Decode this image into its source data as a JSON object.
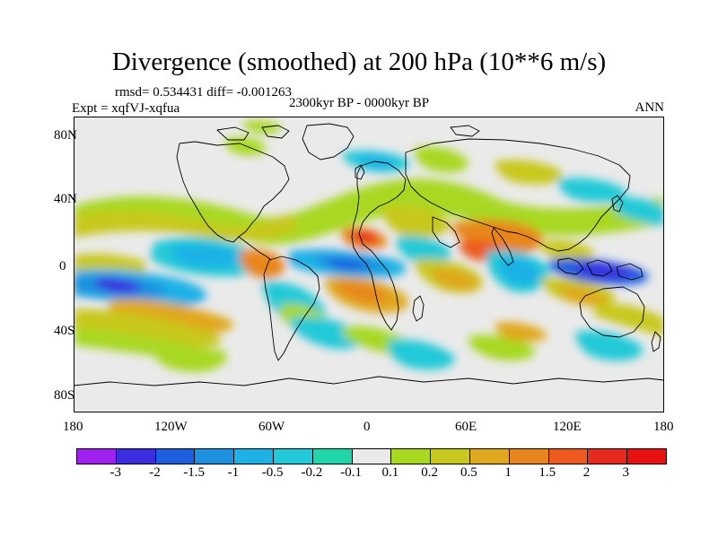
{
  "title": "Divergence (smoothed) at 200 hPa (10**6 m/s)",
  "stats": "rmsd= 0.534431 diff= -0.001263",
  "experiment": "Expt = xqfVJ-xqfua",
  "period": "2300kyr BP - 0000kyr BP",
  "season": "ANN",
  "lat_labels": [
    "80N",
    "40N",
    "0",
    "40S",
    "80S"
  ],
  "lon_labels": [
    "180",
    "120W",
    "60W",
    "0",
    "60E",
    "120E",
    "180"
  ],
  "colorbar": {
    "labels": [
      "-3",
      "-2",
      "-1.5",
      "-1",
      "-0.5",
      "-0.2",
      "-0.1",
      "0.1",
      "0.2",
      "0.5",
      "1",
      "1.5",
      "2",
      "3"
    ],
    "colors": [
      "#a020f0",
      "#3b2ee0",
      "#1e5fe0",
      "#1e90e0",
      "#1fb1e6",
      "#22c9d8",
      "#20d6a8",
      "#eaeaea",
      "#a8d820",
      "#c8c81e",
      "#e0a81e",
      "#e8861e",
      "#ee5a1e",
      "#e82a1e",
      "#e81010"
    ]
  },
  "map_colors": {
    "neutral": "#eaeaea",
    "coast": "#000000"
  },
  "color_indices": {
    "lightcyan": 6,
    "cyan": 5,
    "skyblue": 4,
    "blue": 3,
    "deepblue": 2,
    "navy": 1,
    "lime": 8,
    "olive": 9,
    "yellow": 10,
    "orange": 11,
    "darkorange": 12,
    "red": 13
  }
}
